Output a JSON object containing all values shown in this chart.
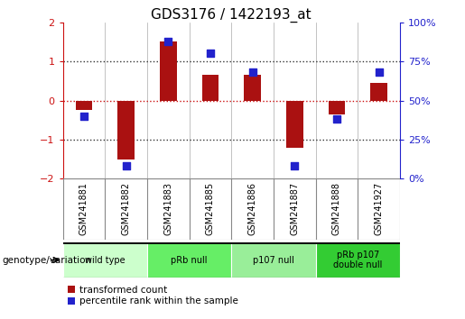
{
  "title": "GDS3176 / 1422193_at",
  "samples": [
    "GSM241881",
    "GSM241882",
    "GSM241883",
    "GSM241885",
    "GSM241886",
    "GSM241887",
    "GSM241888",
    "GSM241927"
  ],
  "transformed_count": [
    -0.25,
    -1.5,
    1.5,
    0.65,
    0.65,
    -1.2,
    -0.35,
    0.45
  ],
  "percentile_rank": [
    40,
    8,
    88,
    80,
    68,
    8,
    38,
    68
  ],
  "ylim_left": [
    -2,
    2
  ],
  "ylim_right": [
    0,
    100
  ],
  "bar_color": "#aa1111",
  "dot_color": "#2222cc",
  "dotted_line_color": "#333333",
  "zero_line_color": "#cc1111",
  "background_color": "#ffffff",
  "groups": [
    {
      "label": "wild type",
      "samples": [
        "GSM241881",
        "GSM241882"
      ],
      "color": "#ccffcc"
    },
    {
      "label": "pRb null",
      "samples": [
        "GSM241883",
        "GSM241885"
      ],
      "color": "#66ee66"
    },
    {
      "label": "p107 null",
      "samples": [
        "GSM241886",
        "GSM241887"
      ],
      "color": "#99ee99"
    },
    {
      "label": "pRb p107\ndouble null",
      "samples": [
        "GSM241888",
        "GSM241927"
      ],
      "color": "#33cc33"
    }
  ],
  "title_fontsize": 11,
  "tick_fontsize": 8,
  "sample_fontsize": 7,
  "group_fontsize": 7,
  "legend_fontsize": 7.5,
  "left_ytick_color": "#cc1111",
  "right_ytick_color": "#2222cc",
  "genotype_label": "genotype/variation",
  "legend_red": "transformed count",
  "legend_blue": "percentile rank within the sample",
  "bar_width": 0.4,
  "dot_size": 40,
  "sample_box_color": "#cccccc",
  "sample_box_edge": "#888888"
}
